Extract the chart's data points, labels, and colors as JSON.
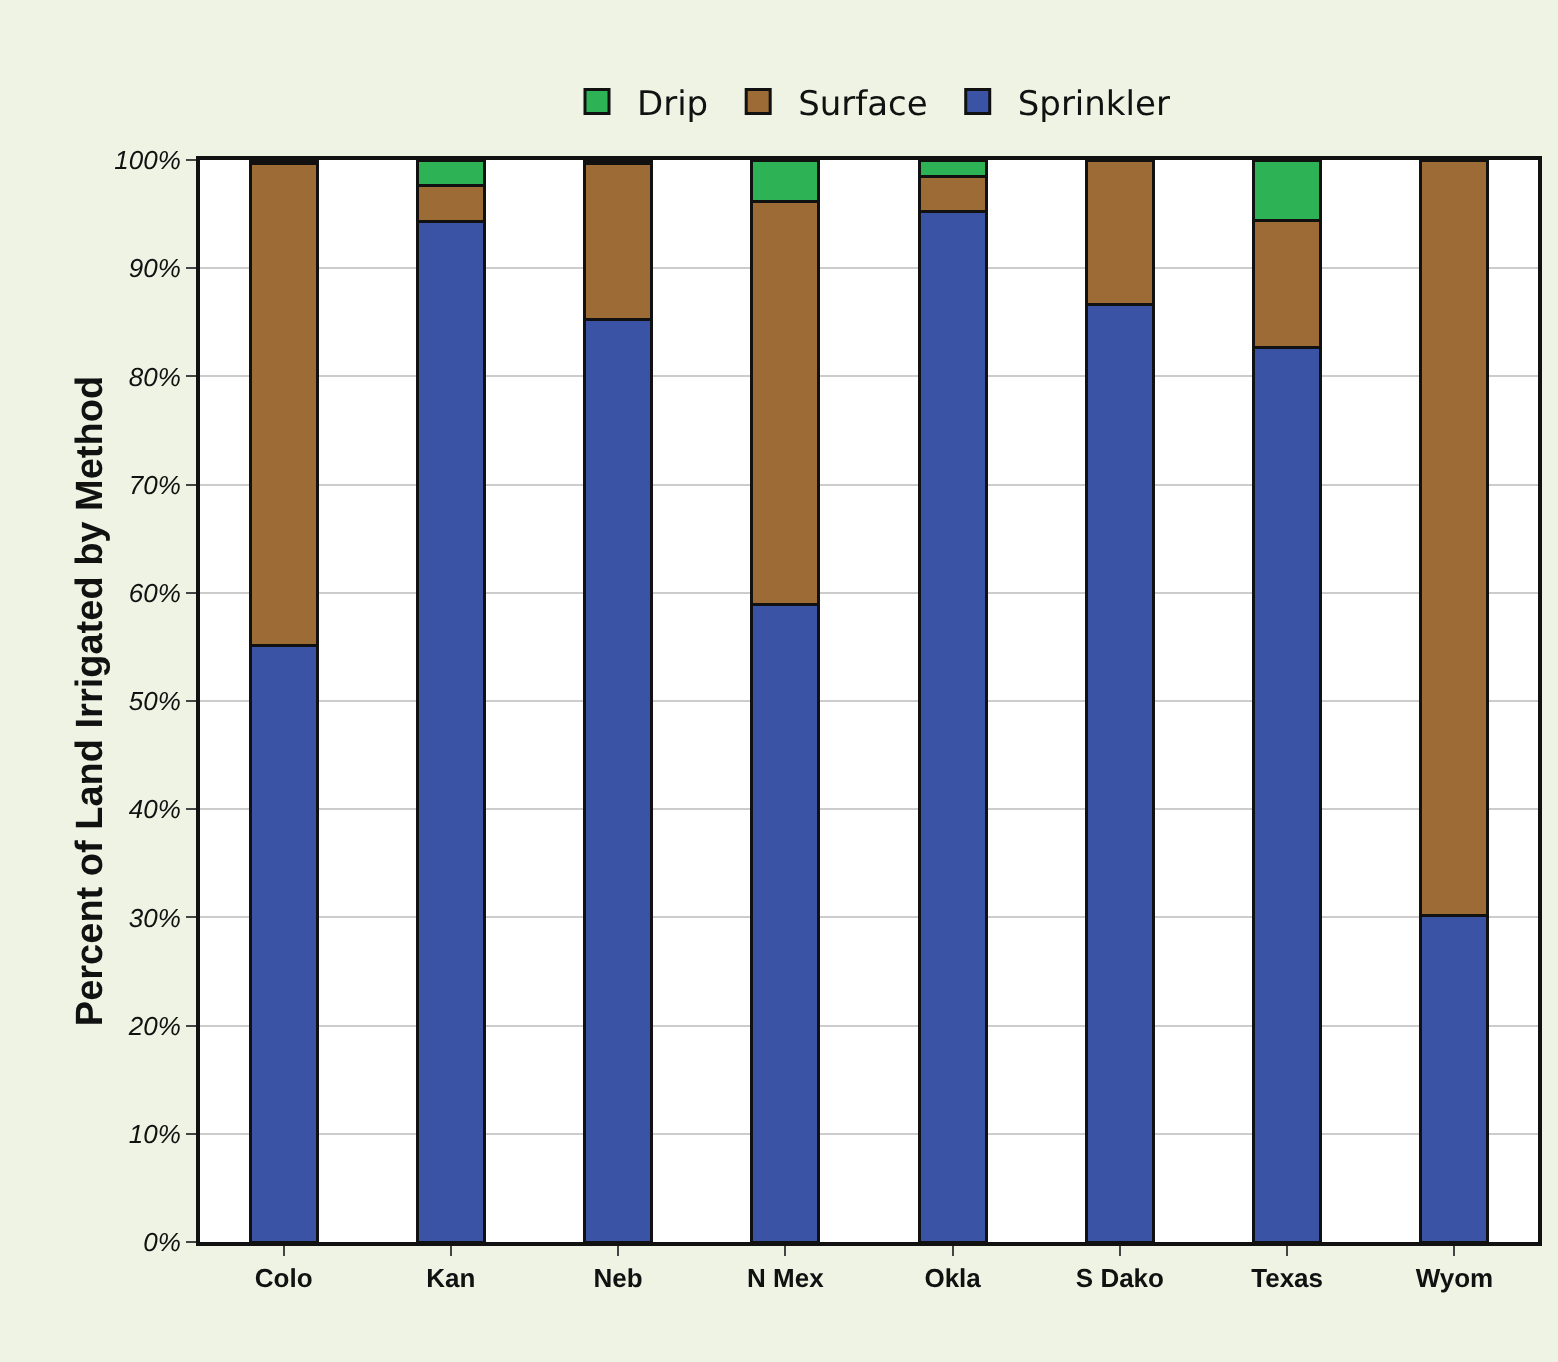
{
  "chart_data": {
    "type": "bar",
    "stacked": true,
    "ylabel": "Percent of Land Irrigated by Method",
    "categories": [
      "Colo",
      "Kan",
      "Neb",
      "N Mex",
      "Okla",
      "S Dako",
      "Texas",
      "Wyom"
    ],
    "series": [
      {
        "name": "Sprinkler",
        "color": "#3a53a4",
        "values": [
          55.1,
          94.3,
          85.3,
          58.9,
          95.2,
          86.6,
          82.7,
          30.2
        ]
      },
      {
        "name": "Surface",
        "color": "#9c6b36",
        "values": [
          44.6,
          3.3,
          14.4,
          37.3,
          3.3,
          13.4,
          11.7,
          69.8
        ]
      },
      {
        "name": "Drip",
        "color": "#2db255",
        "values": [
          0.3,
          2.4,
          0.3,
          3.8,
          1.5,
          null,
          5.6,
          null
        ]
      }
    ],
    "ylim": [
      0,
      100
    ],
    "yticks": [
      {
        "value": 0,
        "label": "0%"
      },
      {
        "value": 10,
        "label": "10%"
      },
      {
        "value": 20,
        "label": "20%"
      },
      {
        "value": 30,
        "label": "30%"
      },
      {
        "value": 40,
        "label": "40%"
      },
      {
        "value": 50,
        "label": "50%"
      },
      {
        "value": 60,
        "label": "60%"
      },
      {
        "value": 70,
        "label": "70%"
      },
      {
        "value": 80,
        "label": "80%"
      },
      {
        "value": 90,
        "label": "90%"
      },
      {
        "value": 100,
        "label": "100%"
      }
    ],
    "grid": "y",
    "legend": "top"
  }
}
